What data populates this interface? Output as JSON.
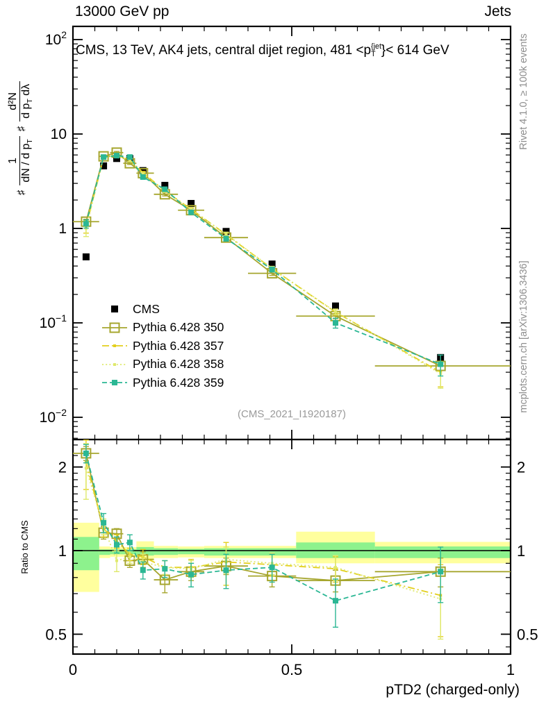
{
  "header": {
    "energy": "13000 GeV pp",
    "topic": "Jets"
  },
  "title": {
    "prefix": "CMS, 13 TeV, AK4 jets, central dijet region, 481 <p",
    "sup": "{jet",
    "sub": "T",
    "suffix": "}< 614 GeV"
  },
  "watermark": "(CMS_2021_I1920187)",
  "side_notes": {
    "top_right": "Rivet 4.1.0, ≥ 100k events",
    "bottom_right": "mcplots.cern.ch [arXiv:1306.3436]"
  },
  "ylabel_main": {
    "hash1": "♯",
    "frac1_num": "1",
    "frac1_den_pre": "dN / d p",
    "frac1_den_sub": "T",
    "hash2": "♯",
    "frac2_num": "d²N",
    "frac2_den_pre": "d p",
    "frac2_den_sub": "T",
    "frac2_den_post": " dλ"
  },
  "ratio_ylabel": "Ratio to CMS",
  "xlabel": "pTD2 (charged-only)",
  "colors": {
    "cms": "#000000",
    "p350": "#a6a62e",
    "p357": "#e3cf1c",
    "p358": "#dfe96d",
    "p359": "#2bb794",
    "band_yellow": "#ffff9e",
    "band_green": "#8df28d",
    "note_gray": "#8d8d8d"
  },
  "chart_data": {
    "type": "line",
    "title": "CMS, 13 TeV, AK4 jets, central dijet region, 481 < pT{jet} < 614 GeV",
    "xlabel": "pTD2 (charged-only)",
    "ylabel": "# 1/(dN/dpT) # d2N/(dpT dlambda)",
    "ratio_label": "Ratio to CMS",
    "x": [
      0.03,
      0.07,
      0.1,
      0.13,
      0.16,
      0.21,
      0.27,
      0.35,
      0.455,
      0.6,
      0.84
    ],
    "bin_edges": [
      0,
      0.06,
      0.085,
      0.115,
      0.145,
      0.185,
      0.24,
      0.3,
      0.4,
      0.51,
      0.69,
      1.0
    ],
    "axes": {
      "x": {
        "min": 0,
        "max": 1,
        "major": [
          0,
          0.5,
          1
        ],
        "major_labels": [
          "0",
          "0.5",
          "1"
        ],
        "minor_step": 0.05
      },
      "y_main": {
        "scale": "log",
        "min": 0.0058,
        "max": 138,
        "decades": [
          {
            "v": 100,
            "base": "10",
            "exp": "2"
          },
          {
            "v": 10,
            "base": "10",
            "exp": ""
          },
          {
            "v": 1,
            "base": "1",
            "exp": ""
          },
          {
            "v": 0.1,
            "base": "10",
            "exp": "−1"
          },
          {
            "v": 0.01,
            "base": "10",
            "exp": "−2"
          }
        ]
      },
      "y_ratio": {
        "scale": "log",
        "min": 0.424,
        "max": 2.51,
        "major": [
          0.5,
          1,
          2
        ],
        "major_labels": [
          "0.5",
          "1",
          "2"
        ],
        "minor": [
          0.45,
          0.6,
          0.7,
          0.8,
          0.9,
          1.1,
          1.2,
          1.3,
          1.4,
          1.5,
          1.6,
          1.7,
          1.8,
          1.9,
          2.2,
          2.4
        ]
      }
    },
    "series": [
      {
        "label": "CMS",
        "color": "#000000",
        "line": "none",
        "marker": "black-square",
        "main": [
          0.5,
          4.6,
          5.5,
          5.5,
          4.1,
          2.86,
          1.84,
          0.93,
          0.42,
          0.151,
          0.043
        ],
        "main_rel_err": [
          0.04,
          0.03,
          0.03,
          0.03,
          0.03,
          0.03,
          0.03,
          0.03,
          0.04,
          0.05,
          0.06
        ],
        "ratio": null,
        "ratio_err": null
      },
      {
        "label": "Pythia 6.428 350",
        "color": "#a6a62e",
        "line": "solid",
        "marker": "open-square",
        "main": [
          1.18,
          5.8,
          6.35,
          4.9,
          3.85,
          2.3,
          1.56,
          0.8,
          0.335,
          0.118,
          0.035
        ],
        "main_rel_err": [
          0.06,
          0.03,
          0.03,
          0.03,
          0.03,
          0.04,
          0.04,
          0.04,
          0.05,
          0.06,
          0.1
        ],
        "ratio": [
          2.24,
          1.16,
          1.15,
          0.92,
          0.93,
          0.785,
          0.84,
          0.88,
          0.81,
          0.78,
          0.84
        ],
        "ratio_err": [
          0.13,
          0.06,
          0.05,
          0.05,
          0.06,
          0.08,
          0.06,
          0.06,
          0.07,
          0.07,
          0.1
        ]
      },
      {
        "label": "Pythia 6.428 357",
        "color": "#e3cf1c",
        "line": "dashdot",
        "marker": "dot",
        "main": [
          1.05,
          5.6,
          6.0,
          5.3,
          3.9,
          2.5,
          1.6,
          0.86,
          0.375,
          0.13,
          0.03
        ],
        "main_rel_err": [
          0.15,
          0.03,
          0.03,
          0.03,
          0.03,
          0.03,
          0.04,
          0.05,
          0.05,
          0.07,
          0.3
        ],
        "ratio": [
          2.08,
          1.2,
          1.08,
          0.97,
          0.95,
          0.87,
          0.87,
          0.91,
          0.89,
          0.86,
          0.69
        ],
        "ratio_err": [
          0.42,
          0.08,
          0.06,
          0.05,
          0.06,
          0.05,
          0.06,
          0.16,
          0.08,
          0.09,
          0.2
        ]
      },
      {
        "label": "Pythia 6.428 358",
        "color": "#dfe96d",
        "line": "dotted",
        "marker": "dot",
        "main": [
          1.0,
          5.65,
          5.9,
          5.25,
          3.8,
          2.48,
          1.58,
          0.87,
          0.378,
          0.131,
          0.029
        ],
        "main_rel_err": [
          0.18,
          0.03,
          0.03,
          0.03,
          0.03,
          0.03,
          0.04,
          0.05,
          0.05,
          0.07,
          0.3
        ],
        "ratio": [
          1.98,
          1.22,
          0.92,
          0.95,
          0.91,
          0.87,
          0.86,
          0.93,
          0.9,
          0.87,
          0.67
        ],
        "ratio_err": [
          0.45,
          0.08,
          0.08,
          0.05,
          0.06,
          0.05,
          0.06,
          0.1,
          0.08,
          0.09,
          0.19
        ]
      },
      {
        "label": "Pythia 6.428 359",
        "color": "#2bb794",
        "line": "dashed",
        "marker": "filled-square",
        "main": [
          1.12,
          5.7,
          5.9,
          5.7,
          3.5,
          2.6,
          1.48,
          0.78,
          0.368,
          0.1,
          0.0365
        ],
        "main_rel_err": [
          0.1,
          0.03,
          0.03,
          0.03,
          0.03,
          0.03,
          0.04,
          0.06,
          0.06,
          0.12,
          0.25
        ],
        "ratio": [
          2.24,
          1.26,
          1.05,
          1.07,
          0.85,
          0.86,
          0.82,
          0.85,
          0.87,
          0.66,
          0.84
        ],
        "ratio_err": [
          0.17,
          0.1,
          0.07,
          0.07,
          0.06,
          0.06,
          0.08,
          0.12,
          0.1,
          0.13,
          0.19
        ]
      }
    ],
    "ratio_bands": {
      "yellow": [
        [
          0.71,
          1.26
        ],
        [
          0.94,
          1.035
        ],
        [
          0.95,
          1.03
        ],
        [
          0.95,
          1.03
        ],
        [
          0.92,
          1.08
        ],
        [
          0.94,
          1.04
        ],
        [
          0.945,
          1.035
        ],
        [
          0.94,
          1.04
        ],
        [
          0.94,
          1.04
        ],
        [
          0.9,
          1.17
        ],
        [
          0.9,
          1.075
        ]
      ],
      "green": [
        [
          0.85,
          1.12
        ],
        [
          0.965,
          1.01
        ],
        [
          0.97,
          1.01
        ],
        [
          0.97,
          1.01
        ],
        [
          0.96,
          1.03
        ],
        [
          0.965,
          1.02
        ],
        [
          0.97,
          1.015
        ],
        [
          0.96,
          1.02
        ],
        [
          0.96,
          1.02
        ],
        [
          0.94,
          1.07
        ],
        [
          0.94,
          1.035
        ]
      ]
    },
    "legend_position": "left-middle",
    "grid": false
  }
}
